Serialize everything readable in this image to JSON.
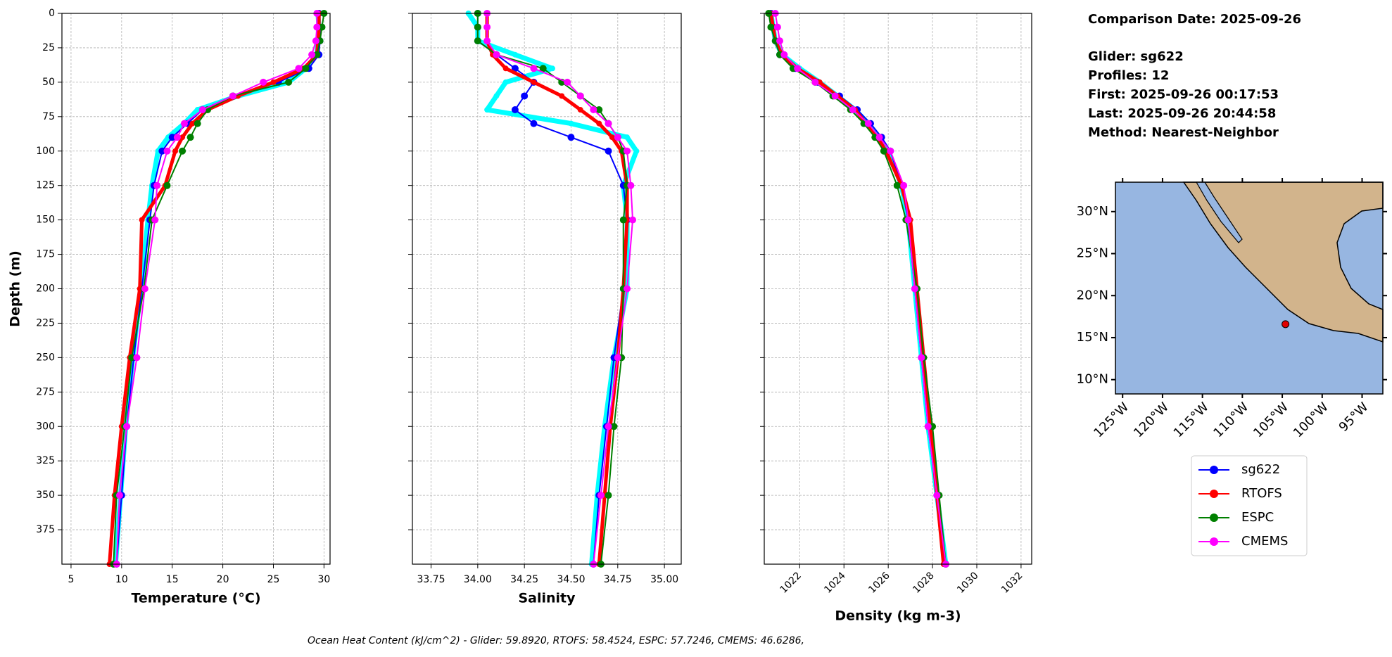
{
  "chart_data": [
    {
      "type": "profile",
      "xlabel": "Temperature (°C)",
      "ylabel": "Depth (m)",
      "xlim": [
        4.1,
        30.6
      ],
      "xticks": [
        5,
        10,
        15,
        20,
        25,
        30
      ],
      "xtick_rotation": 0,
      "ylim": [
        0,
        400
      ],
      "y_inverted": true,
      "yticks": [
        0,
        25,
        50,
        75,
        100,
        125,
        150,
        175,
        200,
        225,
        250,
        275,
        300,
        325,
        350,
        375
      ],
      "ytick_labels": true,
      "grid": true,
      "depths": [
        0,
        10,
        20,
        30,
        40,
        50,
        60,
        70,
        80,
        90,
        100,
        125,
        150,
        200,
        250,
        300,
        350,
        400
      ],
      "series": [
        {
          "color": "#00ffff",
          "linewidth": 7,
          "values": [
            29.4,
            29.5,
            29.4,
            29.3,
            28.2,
            26.5,
            21.5,
            17.5,
            16.2,
            14.6,
            13.6,
            13.0,
            12.6,
            11.9,
            11.1,
            10.4,
            9.9,
            9.4
          ]
        },
        {
          "name": "sg622",
          "color": "#0000ff",
          "linewidth": 2,
          "values": [
            29.5,
            29.6,
            29.6,
            29.5,
            28.5,
            25.5,
            21,
            18,
            16.5,
            15,
            14,
            13.2,
            12.8,
            12,
            11.2,
            10.5,
            10,
            9.5
          ]
        },
        {
          "name": "RTOFS",
          "color": "#ff0000",
          "linewidth": 5,
          "values": [
            29.5,
            29.5,
            29.4,
            29.3,
            28,
            25,
            21.5,
            18.5,
            17,
            16,
            15.3,
            14.3,
            12,
            11.8,
            10.8,
            10,
            9.3,
            8.8
          ]
        },
        {
          "name": "ESPC",
          "color": "#008000",
          "linewidth": 2,
          "values": [
            30,
            29.8,
            29.6,
            29.3,
            28.2,
            26.5,
            21,
            18.5,
            17.5,
            16.8,
            16,
            14.5,
            13,
            12.2,
            11,
            10.3,
            9.5,
            9.2
          ]
        },
        {
          "name": "CMEMS",
          "color": "#ff00ff",
          "linewidth": 2,
          "values": [
            29.3,
            29.3,
            29.2,
            28.8,
            27.5,
            24,
            21,
            18,
            16.2,
            15.5,
            14.5,
            13.5,
            13.3,
            12.3,
            11.5,
            10.5,
            9.8,
            9.5
          ]
        }
      ]
    },
    {
      "type": "profile",
      "xlabel": "Salinity",
      "xlim": [
        33.65,
        35.09
      ],
      "xticks": [
        33.75,
        {
          "value": 34,
          "label": "34.00"
        },
        34.25,
        {
          "value": 34.5,
          "label": "34.50"
        },
        34.75,
        {
          "value": 35,
          "label": "35.00"
        }
      ],
      "xtick_rotation": 0,
      "ylim": [
        0,
        400
      ],
      "y_inverted": true,
      "yticks": [
        0,
        25,
        50,
        75,
        100,
        125,
        150,
        175,
        200,
        225,
        250,
        275,
        300,
        325,
        350,
        375
      ],
      "ytick_labels": false,
      "grid": true,
      "depths": [
        0,
        10,
        20,
        30,
        40,
        50,
        60,
        70,
        80,
        90,
        100,
        125,
        150,
        200,
        250,
        300,
        350,
        400
      ],
      "series": [
        {
          "color": "#00ffff",
          "linewidth": 7,
          "values": [
            33.95,
            34.0,
            34.0,
            34.2,
            34.4,
            34.15,
            34.1,
            34.05,
            34.5,
            34.8,
            34.85,
            34.78,
            34.8,
            34.8,
            34.73,
            34.68,
            34.64,
            34.61
          ]
        },
        {
          "name": "sg622",
          "color": "#0000ff",
          "linewidth": 2,
          "values": [
            34.0,
            34.0,
            34.0,
            34.1,
            34.2,
            34.3,
            34.25,
            34.2,
            34.3,
            34.5,
            34.7,
            34.78,
            34.8,
            34.78,
            34.73,
            34.69,
            34.65,
            34.62
          ]
        },
        {
          "name": "RTOFS",
          "color": "#ff0000",
          "linewidth": 5,
          "values": [
            34.05,
            34.05,
            34.05,
            34.08,
            34.15,
            34.3,
            34.45,
            34.55,
            34.65,
            34.72,
            34.77,
            34.8,
            34.8,
            34.78,
            34.75,
            34.71,
            34.68,
            34.65
          ]
        },
        {
          "name": "ESPC",
          "color": "#008000",
          "linewidth": 2,
          "values": [
            34.0,
            34.0,
            34.0,
            34.1,
            34.35,
            34.45,
            34.55,
            34.65,
            34.7,
            34.75,
            34.78,
            34.8,
            34.78,
            34.78,
            34.77,
            34.73,
            34.7,
            34.66
          ]
        },
        {
          "name": "CMEMS",
          "color": "#ff00ff",
          "linewidth": 2,
          "values": [
            34.05,
            34.05,
            34.05,
            34.1,
            34.3,
            34.48,
            34.55,
            34.62,
            34.7,
            34.75,
            34.8,
            34.82,
            34.83,
            34.8,
            34.75,
            34.7,
            34.66,
            34.62
          ]
        }
      ]
    },
    {
      "type": "profile",
      "xlabel": "Density (kg m-3)",
      "xlim": [
        1020.4,
        1032.48
      ],
      "xticks": [
        1022,
        1024,
        1026,
        1028,
        1030,
        1032
      ],
      "xtick_rotation": 45,
      "ylim": [
        0,
        400
      ],
      "y_inverted": true,
      "yticks": [
        0,
        25,
        50,
        75,
        100,
        125,
        150,
        175,
        200,
        225,
        250,
        275,
        300,
        325,
        350,
        375
      ],
      "ytick_labels": false,
      "grid": true,
      "depths": [
        0,
        10,
        20,
        30,
        40,
        50,
        60,
        70,
        80,
        90,
        100,
        125,
        150,
        200,
        250,
        300,
        350,
        400
      ],
      "series": [
        {
          "color": "#00ffff",
          "linewidth": 7,
          "values": [
            1020.7,
            1020.8,
            1020.9,
            1021.2,
            1022.0,
            1022.9,
            1023.7,
            1024.5,
            1025.1,
            1025.6,
            1026.0,
            1026.6,
            1026.9,
            1027.2,
            1027.5,
            1027.8,
            1028.2,
            1028.6
          ]
        },
        {
          "name": "sg622",
          "color": "#0000ff",
          "linewidth": 2,
          "values": [
            1020.7,
            1020.8,
            1020.9,
            1021.1,
            1021.8,
            1022.8,
            1023.8,
            1024.6,
            1025.2,
            1025.7,
            1026.1,
            1026.6,
            1026.9,
            1027.2,
            1027.5,
            1027.8,
            1028.2,
            1028.6
          ]
        },
        {
          "name": "RTOFS",
          "color": "#ff0000",
          "linewidth": 5,
          "values": [
            1020.7,
            1020.8,
            1020.9,
            1021.2,
            1021.9,
            1022.9,
            1023.7,
            1024.5,
            1025.0,
            1025.5,
            1025.9,
            1026.6,
            1027.0,
            1027.3,
            1027.6,
            1027.9,
            1028.2,
            1028.5
          ]
        },
        {
          "name": "ESPC",
          "color": "#008000",
          "linewidth": 2,
          "values": [
            1020.6,
            1020.7,
            1020.9,
            1021.1,
            1021.7,
            1022.7,
            1023.5,
            1024.3,
            1024.9,
            1025.4,
            1025.8,
            1026.4,
            1026.8,
            1027.3,
            1027.6,
            1028.0,
            1028.3,
            1028.6
          ]
        },
        {
          "name": "CMEMS",
          "color": "#ff00ff",
          "linewidth": 2,
          "values": [
            1020.9,
            1021.0,
            1021.1,
            1021.3,
            1021.9,
            1022.7,
            1023.6,
            1024.4,
            1025.1,
            1025.6,
            1026.1,
            1026.7,
            1026.9,
            1027.2,
            1027.5,
            1027.8,
            1028.2,
            1028.6
          ]
        }
      ]
    }
  ],
  "info": {
    "lines": [
      "Comparison Date: 2025-09-26",
      "Glider: sg622",
      "Profiles: 12",
      "First: 2025-09-26 00:17:53",
      "Last: 2025-09-26 20:44:58",
      "Method: Nearest-Neighbor"
    ]
  },
  "map": {
    "lonlim": [
      -125.9,
      -92.4
    ],
    "latlim": [
      8.3,
      33.5
    ],
    "lat_ticks": [
      {
        "value": 30,
        "label": "30°N"
      },
      {
        "value": 25,
        "label": "25°N"
      },
      {
        "value": 20,
        "label": "20°N"
      },
      {
        "value": 15,
        "label": "15°N"
      },
      {
        "value": 10,
        "label": "10°N"
      }
    ],
    "lon_ticks": [
      {
        "value": -125,
        "label": "125°W"
      },
      {
        "value": -120,
        "label": "120°W"
      },
      {
        "value": -115,
        "label": "115°W"
      },
      {
        "value": -110,
        "label": "110°W"
      },
      {
        "value": -105,
        "label": "105°W"
      },
      {
        "value": -100,
        "label": "100°W"
      },
      {
        "value": -95,
        "label": "95°W"
      }
    ],
    "location": [
      -104.6,
      16.6
    ]
  },
  "footer": "Ocean Heat Content (kJ/cm^2) - Glider: 59.8920,  RTOFS: 58.4524,  ESPC: 57.7246,  CMEMS: 46.6286,"
}
